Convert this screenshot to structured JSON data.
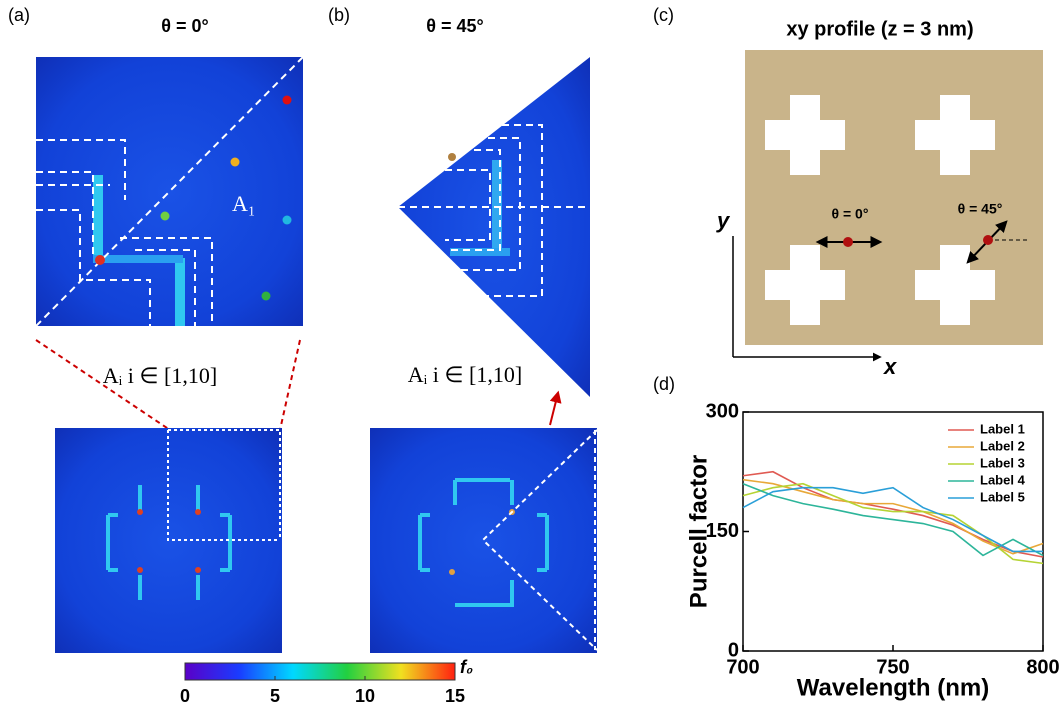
{
  "panels": {
    "a": {
      "label": "(a)",
      "title": "θ = 0°",
      "region": "A₁",
      "range_note": "Aᵢ  i ∈ [1,10]"
    },
    "b": {
      "label": "(b)",
      "title": "θ = 45°",
      "range_note": "Aᵢ  i ∈ [1,10]"
    },
    "c": {
      "label": "(c)",
      "title": "xy profile (z = 3 nm)",
      "x_axis": "x",
      "y_axis": "y",
      "angle_0": "θ = 0°",
      "angle_45": "θ = 45°"
    },
    "d": {
      "label": "(d)"
    }
  },
  "colorbar": {
    "lim": [
      0,
      15
    ],
    "ticks": [
      0,
      5,
      10,
      15
    ],
    "label": "f₀"
  },
  "chart_data": {
    "type": "line",
    "xlabel": "Wavelength (nm)",
    "ylabel": "Purcell factor",
    "x": [
      700,
      710,
      720,
      730,
      740,
      750,
      760,
      770,
      780,
      790,
      800
    ],
    "xlim": [
      700,
      800
    ],
    "xticks": [
      700,
      750,
      800
    ],
    "ylim": [
      0,
      300
    ],
    "yticks": [
      0,
      150,
      300
    ],
    "legend": "upper right",
    "series": [
      {
        "name": "Label 1",
        "color": "#e05a52",
        "values": [
          220,
          225,
          205,
          190,
          185,
          178,
          170,
          158,
          140,
          125,
          118
        ]
      },
      {
        "name": "Label 2",
        "color": "#e8a838",
        "values": [
          215,
          210,
          200,
          190,
          185,
          185,
          175,
          160,
          138,
          122,
          135
        ]
      },
      {
        "name": "Label 3",
        "color": "#b5d334",
        "values": [
          195,
          205,
          210,
          195,
          180,
          175,
          175,
          170,
          145,
          115,
          110
        ]
      },
      {
        "name": "Label 4",
        "color": "#2db59a",
        "values": [
          210,
          195,
          185,
          178,
          170,
          165,
          160,
          150,
          120,
          140,
          120
        ]
      },
      {
        "name": "Label 5",
        "color": "#2a9fd8",
        "values": [
          180,
          200,
          205,
          205,
          198,
          205,
          180,
          165,
          145,
          125,
          125
        ]
      }
    ]
  }
}
